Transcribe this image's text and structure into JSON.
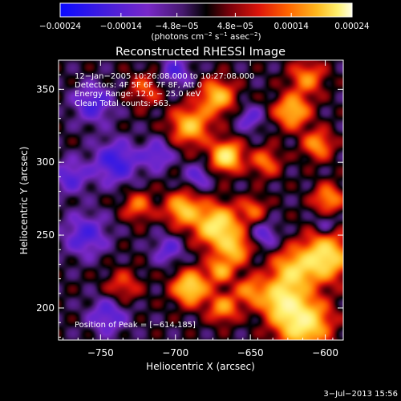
{
  "chart_data": {
    "type": "heatmap",
    "title": "Reconstructed RHESSI Image",
    "xlabel": "Heliocentric X (arcsec)",
    "ylabel": "Heliocentric Y (arcsec)",
    "xlim": [
      -778,
      -588
    ],
    "ylim": [
      178,
      370
    ],
    "x_ticks": [
      -750,
      -700,
      -650,
      -600
    ],
    "x_tick_labels": [
      "−750",
      "−700",
      "−650",
      "−600"
    ],
    "y_ticks": [
      200,
      250,
      300,
      350
    ],
    "y_tick_labels": [
      "200",
      "250",
      "300",
      "350"
    ],
    "colorbar": {
      "range": [
        -0.00024,
        0.00024
      ],
      "ticks": [
        -0.00024,
        -0.00014,
        -4.8e-05,
        4.8e-05,
        0.00014,
        0.00024
      ],
      "tick_labels": [
        "−0.00024",
        "−0.00014",
        "−4.8e−05",
        "4.8e−05",
        "0.00014",
        "0.00024"
      ],
      "units_text": "(photons cm",
      "units_exp1": "−2",
      "units_mid": " s",
      "units_exp2": "−1",
      "units_end": " asec",
      "units_exp3": "−2",
      "units_close": ")"
    },
    "info_lines": [
      "12−Jan−2005 10:26:08.000 to 10:27:08.000",
      "Detectors: 4F 5F 6F 7F 8F, Att 0",
      "Energy Range: 12.0 − 25.0 keV",
      "Clean     Total counts: 563."
    ],
    "peak_label": "Position of Peak = [−614,185]",
    "peak": {
      "x": -614,
      "y": 185
    },
    "blobs": [
      {
        "x": -615,
        "y": 190,
        "amp": 1.0,
        "s": 12
      },
      {
        "x": -600,
        "y": 235,
        "amp": 0.9,
        "s": 11
      },
      {
        "x": -622,
        "y": 225,
        "amp": 0.7,
        "s": 10
      },
      {
        "x": -630,
        "y": 205,
        "amp": 0.75,
        "s": 9
      },
      {
        "x": -672,
        "y": 256,
        "amp": 0.95,
        "s": 10
      },
      {
        "x": -695,
        "y": 268,
        "amp": 0.7,
        "s": 8
      },
      {
        "x": -660,
        "y": 240,
        "amp": 0.6,
        "s": 7
      },
      {
        "x": -666,
        "y": 304,
        "amp": 0.95,
        "s": 7
      },
      {
        "x": -690,
        "y": 325,
        "amp": 0.7,
        "s": 9
      },
      {
        "x": -672,
        "y": 345,
        "amp": 0.7,
        "s": 8
      },
      {
        "x": -690,
        "y": 214,
        "amp": 0.85,
        "s": 8
      },
      {
        "x": -668,
        "y": 200,
        "amp": 0.55,
        "s": 7
      },
      {
        "x": -650,
        "y": 212,
        "amp": 0.5,
        "s": 7
      },
      {
        "x": -670,
        "y": 226,
        "amp": 0.6,
        "s": 6
      },
      {
        "x": -622,
        "y": 335,
        "amp": 0.7,
        "s": 8
      },
      {
        "x": -605,
        "y": 312,
        "amp": 0.55,
        "s": 7
      },
      {
        "x": -612,
        "y": 358,
        "amp": 0.5,
        "s": 8
      },
      {
        "x": -598,
        "y": 275,
        "amp": 0.55,
        "s": 7
      },
      {
        "x": -640,
        "y": 300,
        "amp": 0.45,
        "s": 7
      },
      {
        "x": -648,
        "y": 268,
        "amp": 0.4,
        "s": 6
      },
      {
        "x": -725,
        "y": 270,
        "amp": 0.45,
        "s": 7
      },
      {
        "x": -735,
        "y": 215,
        "amp": 0.35,
        "s": 8
      },
      {
        "x": -720,
        "y": 350,
        "amp": 0.35,
        "s": 8
      },
      {
        "x": -740,
        "y": 300,
        "amp": -0.55,
        "s": 10
      },
      {
        "x": -760,
        "y": 250,
        "amp": -0.45,
        "s": 10
      },
      {
        "x": -755,
        "y": 340,
        "amp": -0.45,
        "s": 9
      },
      {
        "x": -745,
        "y": 195,
        "amp": -0.4,
        "s": 9
      },
      {
        "x": -712,
        "y": 305,
        "amp": -0.4,
        "s": 7
      },
      {
        "x": -705,
        "y": 240,
        "amp": -0.35,
        "s": 7
      },
      {
        "x": -685,
        "y": 290,
        "amp": -0.35,
        "s": 6
      },
      {
        "x": -650,
        "y": 330,
        "amp": -0.35,
        "s": 6
      },
      {
        "x": -640,
        "y": 250,
        "amp": -0.35,
        "s": 6
      },
      {
        "x": -700,
        "y": 362,
        "amp": -0.4,
        "s": 7
      },
      {
        "x": -770,
        "y": 290,
        "amp": -0.4,
        "s": 8
      },
      {
        "x": -600,
        "y": 258,
        "amp": -0.3,
        "s": 5
      }
    ]
  },
  "timestamp": "3−Jul−2013 15:56"
}
